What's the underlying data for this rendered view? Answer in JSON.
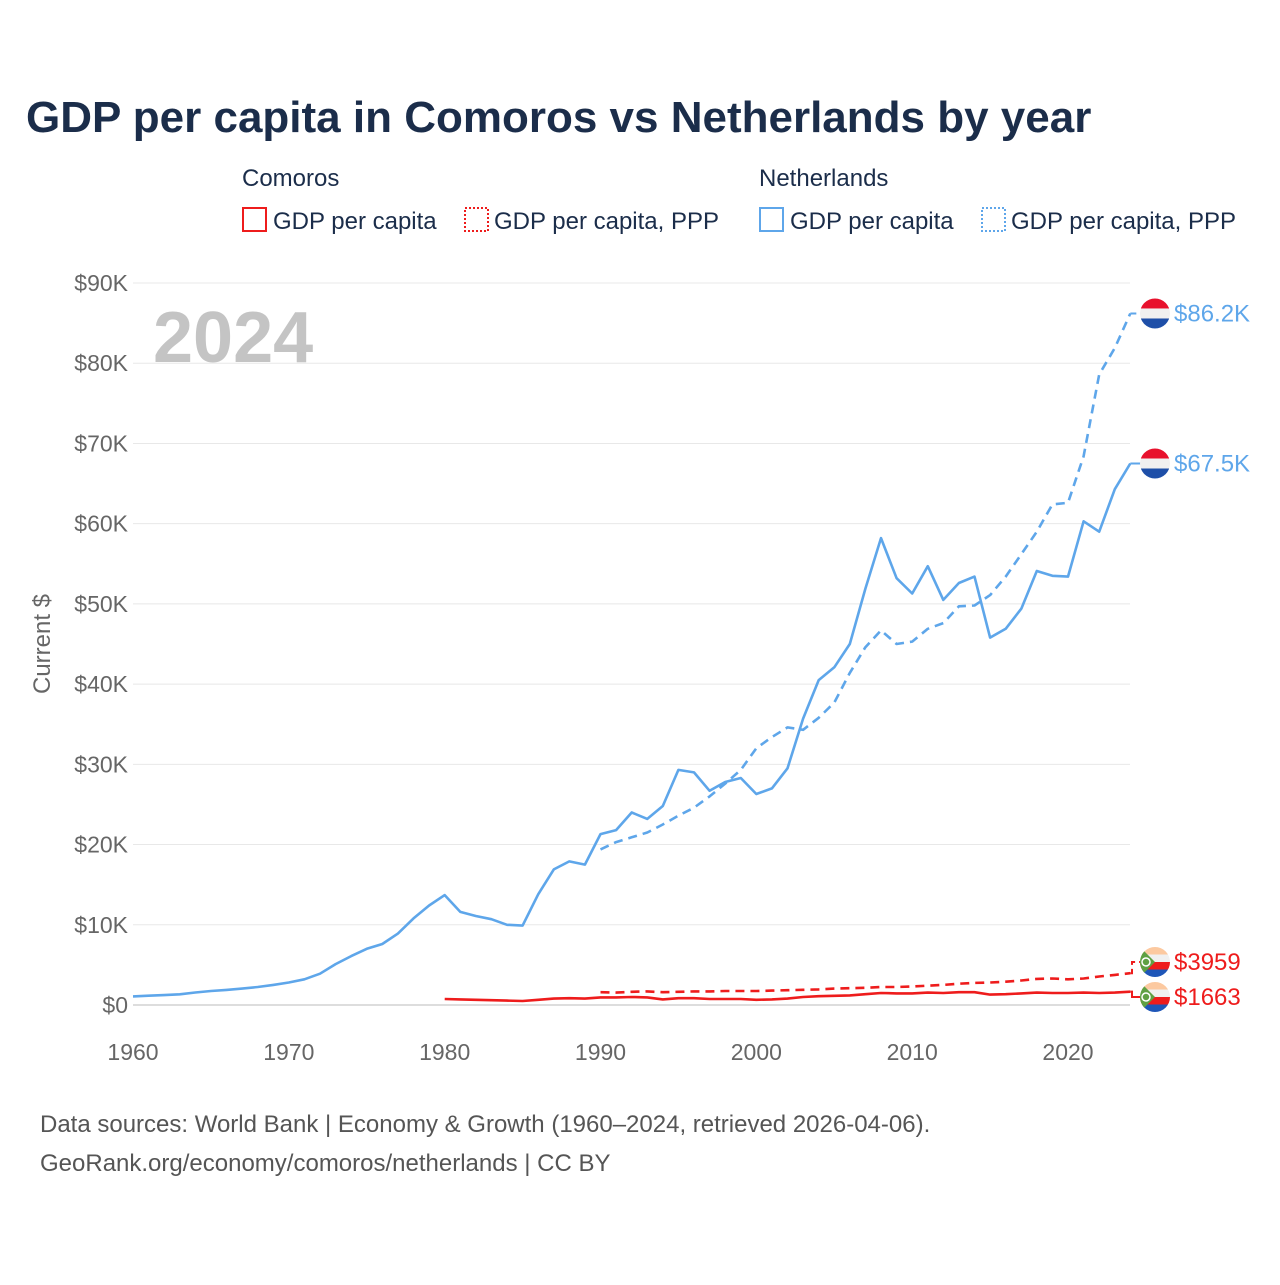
{
  "chart_data": {
    "type": "line",
    "title": "GDP per capita in Comoros vs Netherlands by year",
    "ylabel": "Current $",
    "xlabel": "",
    "xlim": [
      1960,
      2024
    ],
    "ylim": [
      0,
      90000
    ],
    "year_overlay": "2024",
    "grid": true,
    "legend_placement": "top",
    "legend_groups": [
      {
        "country": "Comoros",
        "items": [
          "GDP per capita",
          "GDP per capita, PPP"
        ]
      },
      {
        "country": "Netherlands",
        "items": [
          "GDP per capita",
          "GDP per capita, PPP"
        ]
      }
    ],
    "x_ticks": [
      "1960",
      "1970",
      "1980",
      "1990",
      "2000",
      "2010",
      "2020"
    ],
    "x_tick_values": [
      1960,
      1970,
      1980,
      1990,
      2000,
      2010,
      2020
    ],
    "y_ticks": [
      "$0",
      "$10K",
      "$20K",
      "$30K",
      "$40K",
      "$50K",
      "$60K",
      "$70K",
      "$80K",
      "$90K"
    ],
    "y_tick_values": [
      0,
      10000,
      20000,
      30000,
      40000,
      50000,
      60000,
      70000,
      80000,
      90000
    ],
    "series": [
      {
        "name": "Netherlands GDP per capita",
        "country": "Netherlands",
        "color": "#5ea6ea",
        "dash": false,
        "end_label": "$67.5K",
        "x_start": 1960,
        "values": [
          1070,
          1160,
          1240,
          1330,
          1560,
          1740,
          1880,
          2050,
          2240,
          2500,
          2800,
          3200,
          3900,
          5100,
          6100,
          7000,
          7600,
          8900,
          10800,
          12400,
          13700,
          11600,
          11100,
          10700,
          10000,
          9900,
          13800,
          16900,
          17900,
          17500,
          21300,
          21800,
          24000,
          23200,
          24800,
          29300,
          29000,
          26700,
          27800,
          28300,
          26300,
          27000,
          29500,
          35700,
          40500,
          42100,
          45000,
          51900,
          58200,
          53200,
          51300,
          54700,
          50500,
          52600,
          53400,
          45800,
          46900,
          49400,
          54100,
          53500,
          53400,
          60300,
          59000,
          64300,
          67500
        ]
      },
      {
        "name": "Netherlands GDP per capita, PPP",
        "country": "Netherlands",
        "color": "#5ea6ea",
        "dash": true,
        "end_label": "$86.2K",
        "x_start": 1990,
        "values": [
          19400,
          20300,
          20900,
          21500,
          22500,
          23600,
          24600,
          26000,
          27600,
          29300,
          32000,
          33400,
          34600,
          34300,
          35800,
          37700,
          41400,
          44600,
          46700,
          45000,
          45300,
          46900,
          47600,
          49700,
          49800,
          51100,
          53400,
          56200,
          59000,
          62400,
          62600,
          68400,
          78600,
          81900,
          86200
        ]
      },
      {
        "name": "Comoros GDP per capita",
        "country": "Comoros",
        "color": "#ee1c1c",
        "dash": false,
        "end_label": "$1663",
        "x_start": 1980,
        "values": [
          750,
          700,
          650,
          600,
          550,
          500,
          650,
          800,
          850,
          800,
          950,
          950,
          1000,
          950,
          700,
          850,
          850,
          750,
          750,
          750,
          650,
          700,
          800,
          1000,
          1100,
          1150,
          1200,
          1350,
          1500,
          1450,
          1450,
          1550,
          1500,
          1600,
          1600,
          1300,
          1350,
          1450,
          1550,
          1500,
          1500,
          1550,
          1500,
          1550,
          1663
        ]
      },
      {
        "name": "Comoros GDP per capita, PPP",
        "country": "Comoros",
        "color": "#ee1c1c",
        "dash": true,
        "end_label": "$3959",
        "x_start": 1990,
        "values": [
          1600,
          1550,
          1650,
          1700,
          1600,
          1650,
          1700,
          1700,
          1750,
          1750,
          1750,
          1800,
          1850,
          1900,
          1950,
          2050,
          2100,
          2150,
          2250,
          2250,
          2300,
          2400,
          2500,
          2650,
          2750,
          2800,
          2900,
          3050,
          3250,
          3300,
          3200,
          3300,
          3550,
          3750,
          3959
        ]
      }
    ]
  },
  "footer": {
    "line1": "Data sources: World Bank | Economy & Growth (1960–2024, retrieved 2026-04-06).",
    "line2": "GeoRank.org/economy/comoros/netherlands | CC BY"
  }
}
